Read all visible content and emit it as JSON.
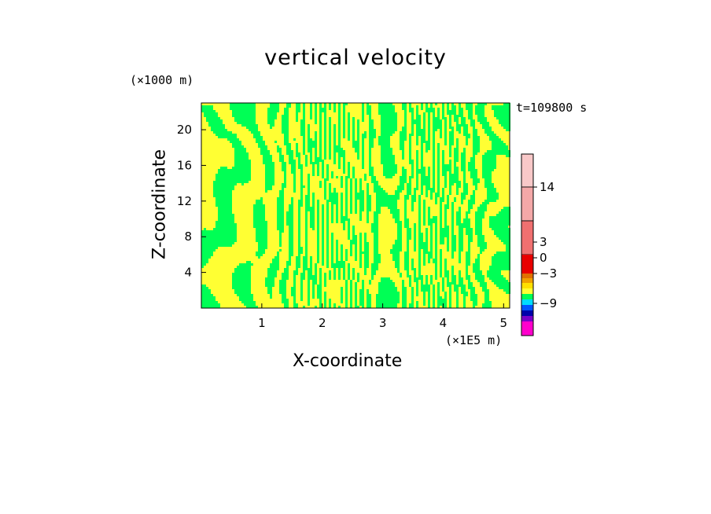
{
  "chart_data": {
    "type": "heatmap",
    "title": "vertical velocity",
    "xlabel": "X-coordinate",
    "ylabel": "Z-coordinate",
    "x_unit": "(×1E5 m)",
    "y_unit": "(×1000 m)",
    "time_label": "t=109800 s",
    "xlim": [
      0,
      5.1
    ],
    "ylim": [
      0,
      23
    ],
    "x_ticks": [
      "1",
      "2",
      "3",
      "4",
      "5"
    ],
    "y_ticks": [
      "4",
      "8",
      "12",
      "16",
      "20"
    ],
    "colorbar": {
      "tick_labels": [
        "14",
        "3",
        "0",
        "−3",
        "−9"
      ],
      "levels_top_to_bottom": [
        {
          "color": "#f8c8c8"
        },
        {
          "color": "#f4a8a8"
        },
        {
          "color": "#f07070"
        },
        {
          "color": "#e80000"
        },
        {
          "color": "#e07000"
        },
        {
          "color": "#f0a000"
        },
        {
          "color": "#ffe000"
        },
        {
          "color": "#ffff33"
        },
        {
          "color": "#00ff55"
        },
        {
          "color": "#00ddff"
        },
        {
          "color": "#0055ff"
        },
        {
          "color": "#0000aa"
        },
        {
          "color": "#7a00c8"
        },
        {
          "color": "#ff00cc"
        }
      ]
    },
    "field_colors": {
      "positive_weak": "#ffff33",
      "negative_weak": "#00ff55"
    }
  }
}
